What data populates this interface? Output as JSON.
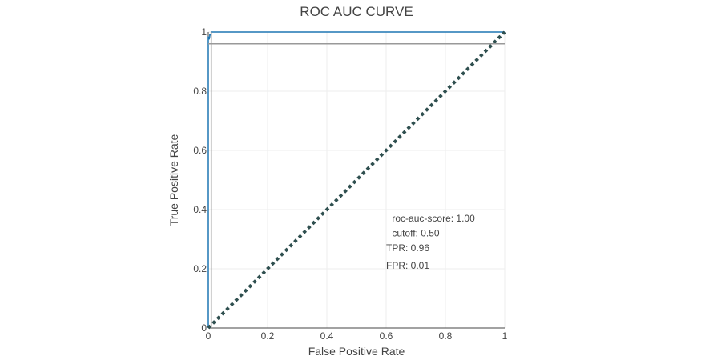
{
  "chart_data": {
    "type": "line",
    "title": "ROC AUC CURVE",
    "xlabel": "False Positive Rate",
    "ylabel": "True Positive Rate",
    "xlim": [
      0,
      1
    ],
    "ylim": [
      0,
      1
    ],
    "x_ticks": [
      "0",
      "0.2",
      "0.4",
      "0.6",
      "0.8",
      "1"
    ],
    "y_ticks": [
      "0",
      "0.2",
      "0.4",
      "0.6",
      "0.8",
      "1"
    ],
    "grid": true,
    "legend": "none",
    "series": [
      {
        "color": "#1f77b4",
        "x": [
          0,
          0,
          0,
          0.003,
          0.005,
          0.005,
          0.01,
          0.01,
          1
        ],
        "y": [
          0,
          0.96,
          0.985,
          0.975,
          0.985,
          0.99,
          0.99,
          1,
          1
        ]
      },
      {
        "color": "#2f4f4f",
        "dash": "dotted",
        "x": [
          0,
          1
        ],
        "y": [
          0,
          1
        ]
      },
      {
        "color": "#999999",
        "x": [
          0,
          1
        ],
        "y": [
          0.96,
          0.96
        ]
      },
      {
        "color": "#999999",
        "x": [
          0.01,
          0.01
        ],
        "y": [
          0,
          1
        ]
      }
    ],
    "annotations": [
      {
        "text": "roc-auc-score: 1.00",
        "x": 0.62,
        "y": 0.36
      },
      {
        "text": "cutoff: 0.50",
        "x": 0.62,
        "y": 0.31
      },
      {
        "text": "TPR: 0.96",
        "x": 0.6,
        "y": 0.26
      },
      {
        "text": "FPR: 0.01",
        "x": 0.6,
        "y": 0.2
      }
    ]
  }
}
